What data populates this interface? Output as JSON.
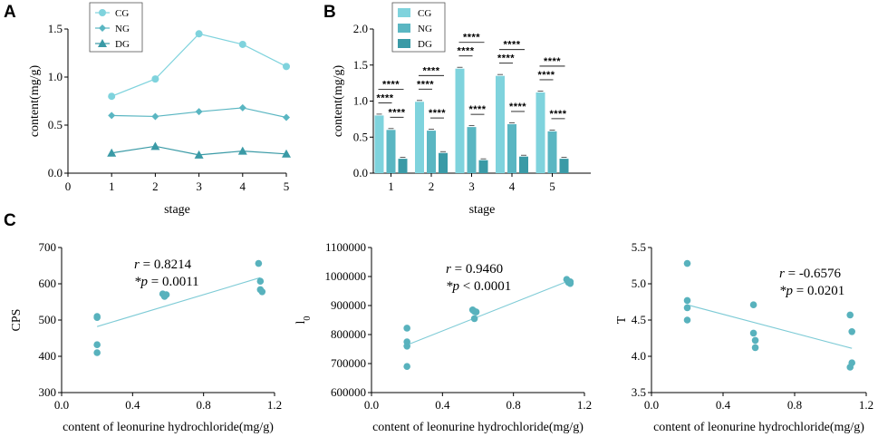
{
  "colors": {
    "CG": "#7fd3dd",
    "NG": "#5ab6c2",
    "DG": "#3a9aa6",
    "fit": "#7ecbd6",
    "scatter": "#58b2bd",
    "axis": "#000000"
  },
  "panels": {
    "A": "A",
    "B": "B",
    "C": "C"
  },
  "chart_data": [
    {
      "id": "A",
      "type": "line",
      "x": [
        1,
        2,
        3,
        4,
        5
      ],
      "series": [
        {
          "name": "CG",
          "marker": "circle",
          "values": [
            0.8,
            0.98,
            1.45,
            1.34,
            1.11
          ]
        },
        {
          "name": "NG",
          "marker": "diamond",
          "values": [
            0.6,
            0.59,
            0.64,
            0.68,
            0.58
          ]
        },
        {
          "name": "DG",
          "marker": "triangle",
          "values": [
            0.21,
            0.28,
            0.19,
            0.23,
            0.2
          ]
        }
      ],
      "xlabel": "stage",
      "ylabel": "content(mg/g)",
      "xlim": [
        0,
        5
      ],
      "ylim": [
        0,
        1.5
      ],
      "xticks": [
        "0",
        "1",
        "2",
        "3",
        "4",
        "5"
      ],
      "yticks": [
        "0.0",
        "0.5",
        "1.0",
        "1.5"
      ],
      "legend": [
        "CG",
        "NG",
        "DG"
      ],
      "legend_position": "top-left"
    },
    {
      "id": "B",
      "type": "bar",
      "categories": [
        "1",
        "2",
        "3",
        "4",
        "5"
      ],
      "series": [
        {
          "name": "CG",
          "values": [
            0.8,
            0.99,
            1.45,
            1.35,
            1.12
          ]
        },
        {
          "name": "NG",
          "values": [
            0.6,
            0.59,
            0.64,
            0.68,
            0.58
          ]
        },
        {
          "name": "DG",
          "values": [
            0.2,
            0.28,
            0.18,
            0.23,
            0.2
          ]
        }
      ],
      "xlabel": "stage",
      "ylabel": "content(mg/g)",
      "ylim": [
        0,
        2.0
      ],
      "yticks": [
        "0.0",
        "0.5",
        "1.0",
        "1.5",
        "2.0"
      ],
      "legend": [
        "CG",
        "NG",
        "DG"
      ],
      "legend_position": "top-left",
      "annotation": "****",
      "significance": [
        {
          "pair": [
            "CG",
            "NG"
          ],
          "label": "****"
        },
        {
          "pair": [
            "CG",
            "DG"
          ],
          "label": "****"
        },
        {
          "pair": [
            "NG",
            "DG"
          ],
          "label": "****"
        }
      ]
    },
    {
      "id": "C1",
      "type": "scatter",
      "x": [
        0.2,
        0.2,
        0.2,
        0.2,
        0.57,
        0.58,
        0.59,
        0.58,
        1.11,
        1.12,
        1.13,
        1.12
      ],
      "y": [
        510,
        507,
        432,
        410,
        572,
        568,
        570,
        565,
        656,
        607,
        578,
        584
      ],
      "fit": {
        "x": [
          0.2,
          1.12
        ],
        "y": [
          482,
          617
        ]
      },
      "xlabel": "content of leonurine hydrochloride(mg/g)",
      "ylabel": "CPS",
      "xlim": [
        0.0,
        1.2
      ],
      "ylim": [
        300,
        700
      ],
      "xticks": [
        "0.0",
        "0.4",
        "0.8",
        "1.2"
      ],
      "yticks": [
        "300",
        "400",
        "500",
        "600",
        "700"
      ],
      "stat_r": "0.8214",
      "stat_p": "0.0011",
      "p_op": "=",
      "r_label": "r",
      "p_label": "*p"
    },
    {
      "id": "C2",
      "type": "scatter",
      "x": [
        0.2,
        0.2,
        0.2,
        0.2,
        0.57,
        0.58,
        0.59,
        0.58,
        1.1,
        1.11,
        1.12,
        1.12
      ],
      "y": [
        822000,
        775000,
        760000,
        690000,
        885000,
        880000,
        878000,
        855000,
        990000,
        980000,
        976000,
        982000
      ],
      "fit": {
        "x": [
          0.2,
          1.12
        ],
        "y": [
          764000,
          987000
        ]
      },
      "xlabel": "content of leonurine hydrochloride(mg/g)",
      "ylabel": "l",
      "ylabel_sub": "0",
      "xlim": [
        0.0,
        1.2
      ],
      "ylim": [
        600000,
        1100000
      ],
      "xticks": [
        "0.0",
        "0.4",
        "0.8",
        "1.2"
      ],
      "yticks": [
        "600000",
        "700000",
        "800000",
        "900000",
        "1000000",
        "1100000"
      ],
      "stat_r": "0.9460",
      "stat_p": "0.0001",
      "p_op": "<",
      "r_label": "r",
      "p_label": "*p"
    },
    {
      "id": "C3",
      "type": "scatter",
      "x": [
        0.2,
        0.2,
        0.2,
        0.2,
        0.57,
        0.57,
        0.58,
        0.58,
        1.11,
        1.12,
        1.12,
        1.11
      ],
      "y": [
        5.28,
        4.77,
        4.67,
        4.5,
        4.71,
        4.32,
        4.22,
        4.12,
        4.57,
        4.34,
        3.91,
        3.85
      ],
      "fit": {
        "x": [
          0.2,
          1.12
        ],
        "y": [
          4.71,
          4.11
        ]
      },
      "xlabel": "content of leonurine hydrochloride(mg/g)",
      "ylabel": "T",
      "xlim": [
        0.0,
        1.2
      ],
      "ylim": [
        3.5,
        5.5
      ],
      "xticks": [
        "0.0",
        "0.4",
        "0.8",
        "1.2"
      ],
      "yticks": [
        "3.5",
        "4.0",
        "4.5",
        "5.0",
        "5.5"
      ],
      "stat_r": "-0.6576",
      "stat_p": "0.0201",
      "p_op": "=",
      "r_label": "r",
      "p_label": "*p"
    }
  ]
}
